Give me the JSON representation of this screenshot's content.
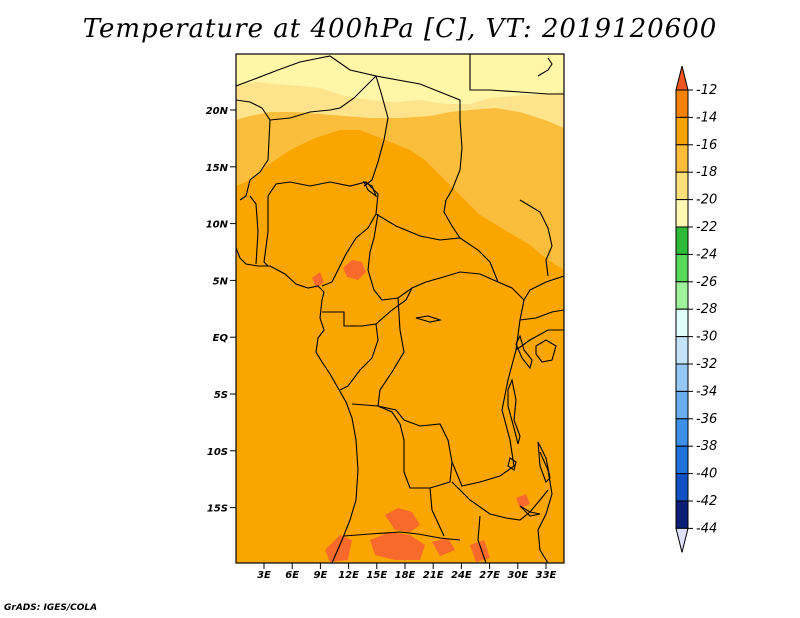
{
  "title": "Temperature at 400hPa [C], VT: 2019120600",
  "credit": "GrADS: IGES/COLA",
  "map": {
    "lat_labels": [
      "20N",
      "15N",
      "10N",
      "5N",
      "EQ",
      "5S",
      "10S",
      "15S"
    ],
    "lon_labels": [
      "3E",
      "6E",
      "9E",
      "12E",
      "15E",
      "18E",
      "21E",
      "24E",
      "27E",
      "30E",
      "33E"
    ],
    "colors": {
      "ocean_land_main": "#fba500",
      "band_lightorange": "#fbbe3c",
      "band_yellow": "#fde38c",
      "band_paleyellow": "#fff6a8",
      "hotspot": "#f86a2c",
      "border": "#000000"
    }
  },
  "colorbar": {
    "labels": [
      "-12",
      "-14",
      "-16",
      "-18",
      "-20",
      "-22",
      "-24",
      "-26",
      "-28",
      "-30",
      "-32",
      "-34",
      "-36",
      "-38",
      "-40",
      "-42",
      "-44"
    ],
    "colors": [
      "#f0561f",
      "#f68200",
      "#f9a300",
      "#fbbd3a",
      "#fde07a",
      "#fff7b2",
      "#2fbb3a",
      "#59d95a",
      "#9ff39a",
      "#e1ffff",
      "#c4e3fb",
      "#96c8f5",
      "#6aaeef",
      "#3d8fe8",
      "#2073db",
      "#1150c0",
      "#0b1e78"
    ],
    "top_arrow_color": "#f0561f",
    "bottom_arrow_color": "#e0e0ff"
  }
}
